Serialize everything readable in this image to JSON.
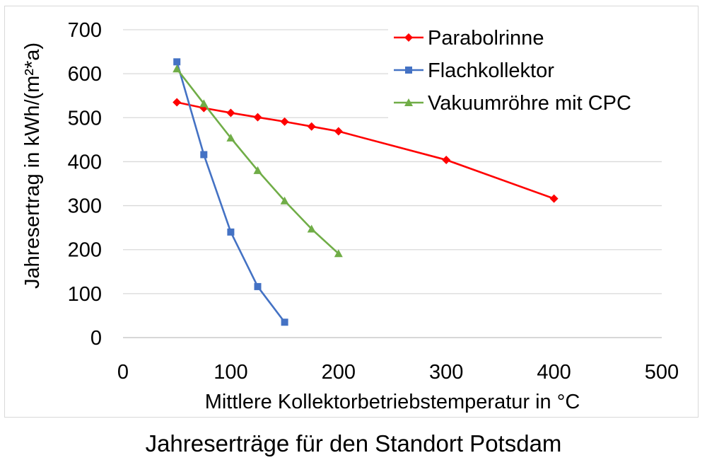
{
  "caption": "Jahreserträge für den Standort Potsdam",
  "chart_data": {
    "type": "line",
    "title": "",
    "xlabel": "Mittlere Kollektorbetriebstemperatur in °C",
    "ylabel": "Jahresertrag in kWh/(m²*a)",
    "xlim": [
      0,
      500
    ],
    "ylim": [
      0,
      700
    ],
    "xticks": [
      "0",
      "100",
      "200",
      "300",
      "400",
      "500"
    ],
    "yticks": [
      "0",
      "100",
      "200",
      "300",
      "400",
      "500",
      "600",
      "700"
    ],
    "grid": "horizontal",
    "legend_position": "top-right",
    "series": [
      {
        "name": "Parabolrinne",
        "color": "#ff0000",
        "marker": "diamond",
        "x": [
          50,
          75,
          100,
          125,
          150,
          175,
          200,
          300,
          400
        ],
        "y": [
          535,
          522,
          511,
          501,
          491,
          480,
          469,
          404,
          316
        ]
      },
      {
        "name": "Flachkollektor",
        "color": "#4472c4",
        "marker": "square",
        "x": [
          50,
          75,
          100,
          125,
          150
        ],
        "y": [
          627,
          416,
          240,
          116,
          35
        ]
      },
      {
        "name": "Vakuumröhre mit CPC",
        "color": "#70ad47",
        "marker": "triangle",
        "x": [
          50,
          75,
          100,
          125,
          150,
          175,
          200
        ],
        "y": [
          611,
          532,
          454,
          380,
          311,
          247,
          191
        ]
      }
    ]
  }
}
